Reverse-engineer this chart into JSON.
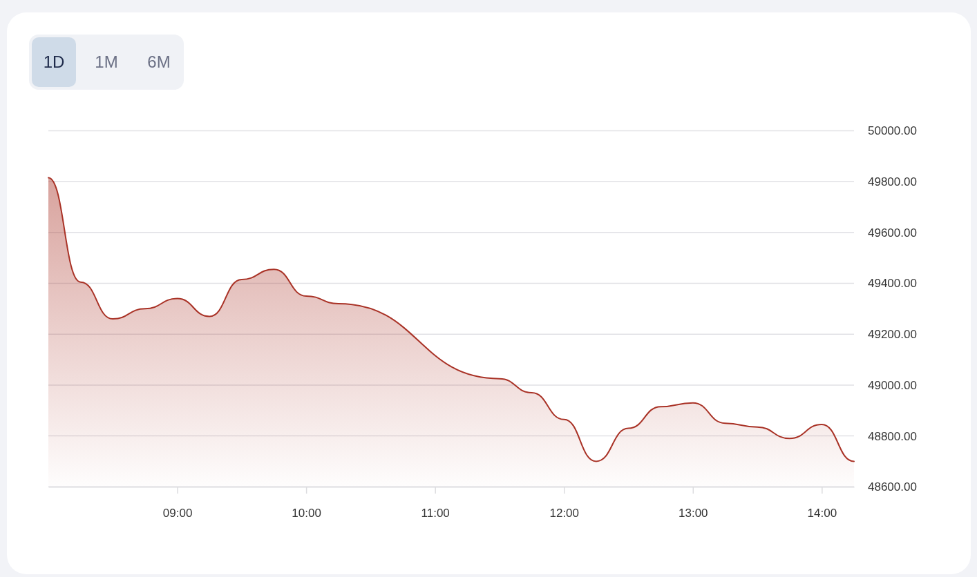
{
  "chart_data": {
    "type": "area",
    "annotations": [
      "1D",
      "1M",
      "6M"
    ],
    "x": [
      8,
      8.25,
      8.5,
      8.75,
      9,
      9.25,
      9.5,
      9.75,
      10,
      10.25,
      11.5,
      11.75,
      12,
      12.25,
      12.5,
      12.75,
      13,
      13.25,
      13.5,
      13.75,
      14,
      14.25
    ],
    "values": [
      49815,
      49405,
      49260,
      49300,
      49340,
      49270,
      49415,
      49455,
      49350,
      49320,
      49025,
      48970,
      48865,
      48700,
      48830,
      48915,
      48930,
      48850,
      48835,
      48790,
      48845,
      48700
    ],
    "color": "#a93226",
    "xlim": [
      8,
      14.25
    ],
    "xticks": [
      {
        "value": 9,
        "label": "09:00"
      },
      {
        "value": 10,
        "label": "10:00"
      },
      {
        "value": 11,
        "label": "11:00"
      },
      {
        "value": 12,
        "label": "12:00"
      },
      {
        "value": 13,
        "label": "13:00"
      },
      {
        "value": 14,
        "label": "14:00"
      }
    ],
    "ylim": [
      48600,
      50000
    ],
    "yticks": [
      {
        "value": 48600,
        "label": "48600.00"
      },
      {
        "value": 48800,
        "label": "48800.00"
      },
      {
        "value": 49000,
        "label": "49000.00"
      },
      {
        "value": 49200,
        "label": "49200.00"
      },
      {
        "value": 49400,
        "label": "49400.00"
      },
      {
        "value": 49600,
        "label": "49600.00"
      },
      {
        "value": 49800,
        "label": "49800.00"
      },
      {
        "value": 50000,
        "label": "50000.00"
      }
    ],
    "grid": "y"
  }
}
